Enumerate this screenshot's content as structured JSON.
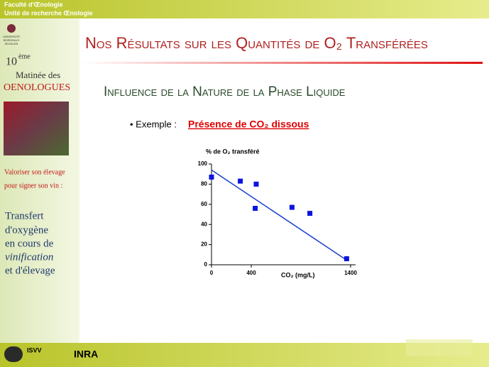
{
  "slide": {
    "header": [
      "Faculté d'Œnologie",
      "Unité de recherche Œnologie"
    ],
    "university": [
      "UNIVERSITÉ",
      "BORDEAUX",
      "SEGALEN"
    ],
    "event": {
      "number": "10",
      "suffix": "ème",
      "line1": "Matinée des",
      "line2": "OENOLOGUES"
    },
    "motto": [
      "Valoriser son élevage",
      "pour signer son vin :"
    ],
    "topic": [
      "Transfert",
      "d'oxygène",
      "en cours de",
      "vinification",
      "et d'élevage"
    ],
    "title": "Nos Résultats sur les Quantités de O₂ Transférées",
    "subtitle": "Influence de la Nature de la Phase Liquide",
    "bullet": "• Exemple :",
    "example": "Présence de CO₂ dissous",
    "footer": [
      "ISVV",
      "INRA"
    ]
  },
  "chart_data": {
    "type": "scatter",
    "y_label": "% de O₂ transféré",
    "x_label": "CO₂ (mg/L)",
    "x": [
      0,
      290,
      450,
      440,
      810,
      990,
      1360
    ],
    "values": [
      87,
      83,
      80,
      56,
      57,
      51,
      6
    ],
    "color": "#0a14e0",
    "trendline": {
      "x": [
        0,
        1370
      ],
      "y": [
        94,
        4
      ],
      "color": "#1a3fd0"
    },
    "xlim": [
      0,
      1450
    ],
    "ylim": [
      0,
      100
    ],
    "xticks": [
      0,
      400,
      1400
    ],
    "yticks": [
      0,
      20,
      40,
      60,
      80,
      100
    ]
  }
}
